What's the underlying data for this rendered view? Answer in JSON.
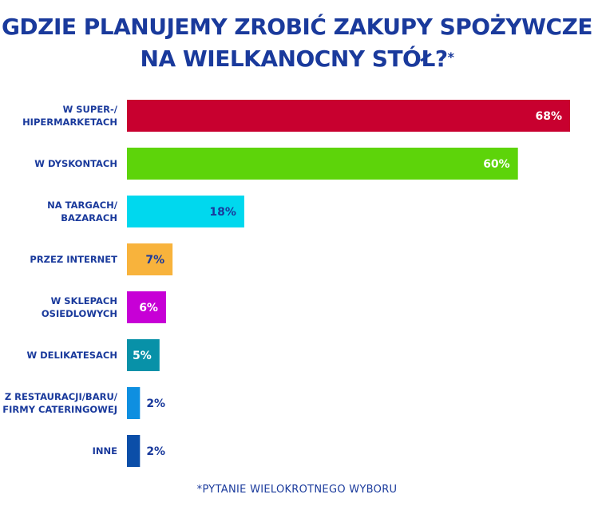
{
  "title_line1": "GDZIE PLANUJEMY ZROBIĆ ZAKUPY SPOŻYWCZE",
  "title_line2": "NA WIELKANOCNY STÓŁ?",
  "title_mark": "*",
  "footnote": "*PYTANIE WIELOKROTNEGO WYBORU",
  "chart_data": {
    "type": "bar",
    "orientation": "horizontal",
    "categories": [
      [
        "W SUPER-/",
        "HIPERMARKETACH"
      ],
      [
        "W DYSKONTACH"
      ],
      [
        "NA TARGACH/",
        "BAZARACH"
      ],
      [
        "PRZEZ INTERNET"
      ],
      [
        "W SKLEPACH",
        "OSIEDLOWYCH"
      ],
      [
        "W DELIKATESACH"
      ],
      [
        "Z RESTAURACJI/BARU/",
        "FIRMY CATERINGOWEJ"
      ],
      [
        "INNE"
      ]
    ],
    "values": [
      68,
      60,
      18,
      7,
      6,
      5,
      2,
      2
    ],
    "value_labels": [
      "68%",
      "60%",
      "18%",
      "7%",
      "6%",
      "5%",
      "2%",
      "2%"
    ],
    "unit": "%",
    "xlim": [
      0,
      68
    ],
    "grid": false,
    "colors": [
      "#c8002f",
      "#5dd40a",
      "#00d8ee",
      "#f8b33c",
      "#c700d6",
      "#0891a8",
      "#0e8fe0",
      "#0b4ea8"
    ],
    "label_colors": [
      "#ffffff",
      "#ffffff",
      "#1a3a9c",
      "#1a3a9c",
      "#ffffff",
      "#ffffff",
      "#1a3a9c",
      "#1a3a9c"
    ]
  }
}
